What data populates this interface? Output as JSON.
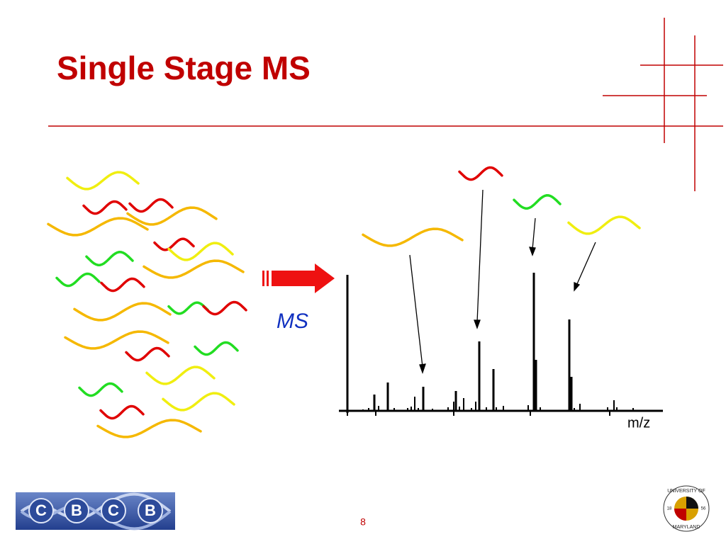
{
  "slide": {
    "title": "Single Stage MS",
    "arrow_label": "MS",
    "axis_label": "m/z",
    "page_number": "8"
  },
  "logos": {
    "cbcb": [
      "C",
      "B",
      "C",
      "B"
    ],
    "umd": {
      "top": "UNIVERSITY OF",
      "bottom": "MARYLAND",
      "year_left": "18",
      "year_right": "56"
    }
  }
}
